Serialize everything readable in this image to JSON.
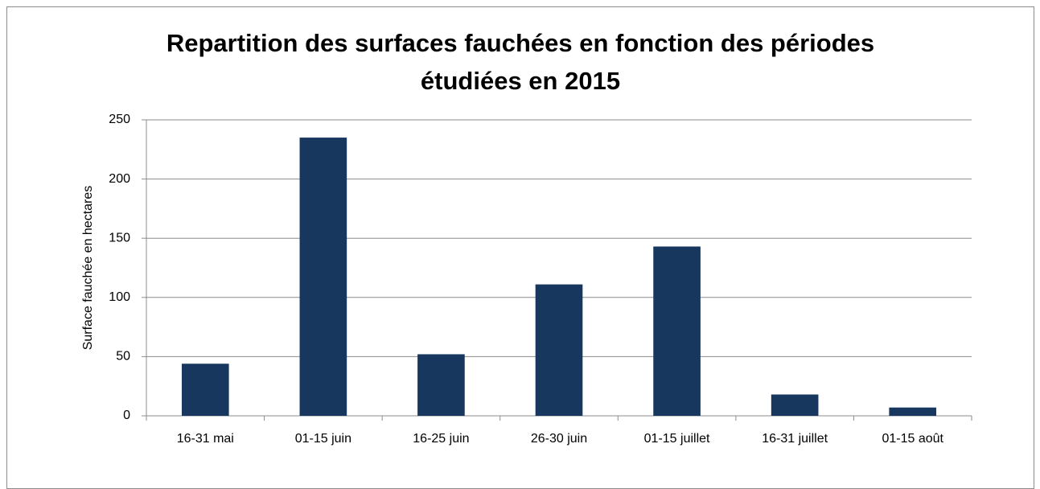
{
  "chart_data": {
    "type": "bar",
    "title": "Repartition des surfaces fauchées en fonction des périodes étudiées en 2015",
    "y_label": "Surface fauchée en hectares",
    "categories": [
      "16-31 mai",
      "01-15 juin",
      "16-25 juin",
      "26-30 juin",
      "01-15 juillet",
      "16-31 juillet",
      "01-15 août"
    ],
    "values": [
      44,
      235,
      52,
      111,
      143,
      18,
      7
    ],
    "color": "#17375e",
    "ylim": [
      0,
      250
    ],
    "yticks": [
      0,
      50,
      100,
      150,
      200,
      250
    ],
    "grid": true
  }
}
